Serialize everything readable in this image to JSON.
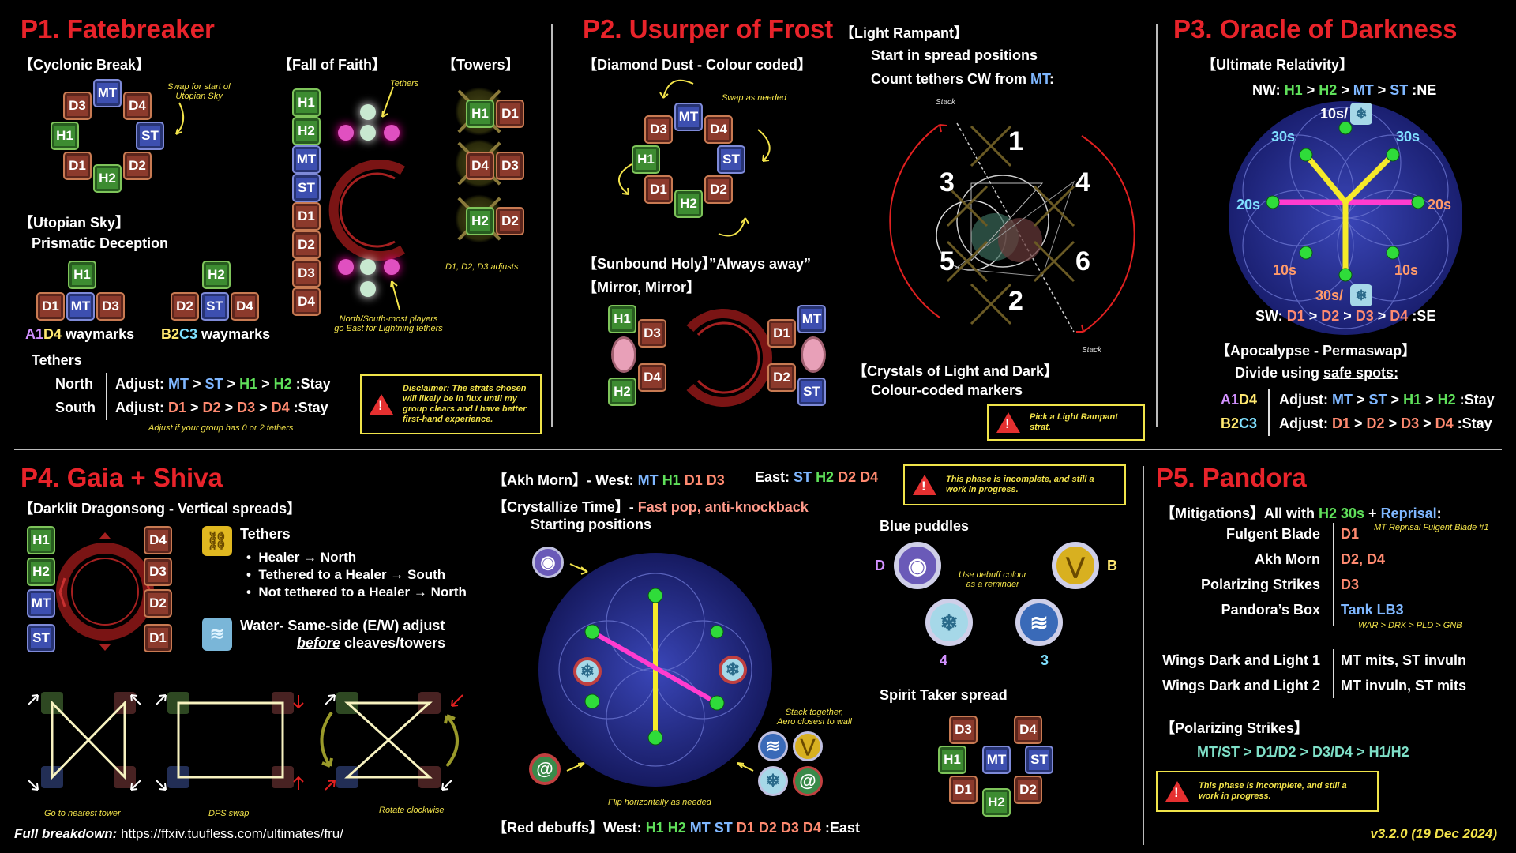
{
  "p1": {
    "title": "P1. Fatebreaker",
    "cyclonic_break": "【Cyclonic Break】",
    "cyclonic_note": "Swap for start of\nUtopian Sky",
    "fall_of_faith": "【Fall of Faith】",
    "tethers_note": "Tethers",
    "towers": "【Towers】",
    "towers_note": "D1, D2, D3 adjusts",
    "utopian_sky": "【Utopian Sky】",
    "prismatic": "Prismatic Deception",
    "a1d4_label": "waymarks",
    "b2c3_label": "waymarks",
    "fof_note": "North/South-most players\ngo East for Lightning tethers",
    "tethers_label": "Tethers",
    "north": "North",
    "south": "South",
    "adjust": "Adjust:",
    "stay": ":Stay",
    "adjust_note": "Adjust if your group has 0 or 2 tethers",
    "disclaimer": "Disclaimer: The strats chosen will likely be in flux until my group clears and I have better first-hand experience."
  },
  "p2": {
    "title": "P2. Usurper of Frost",
    "diamond_dust": "【Diamond Dust - Colour coded】",
    "swap_note": "Swap as needed",
    "light_rampant": "【Light Rampant】",
    "lr_line1": "Start in spread positions",
    "lr_line2a": "Count tethers CW from ",
    "lr_mt": "MT",
    "lr_colon": ":",
    "stack": "Stack",
    "numbers": [
      "1",
      "2",
      "3",
      "4",
      "5",
      "6"
    ],
    "sunbound": "【Sunbound Holy】”Always away”",
    "mirror": "【Mirror, Mirror】",
    "crystals": "【Crystals of Light and Dark】",
    "crystals_sub": "Colour-coded markers",
    "pick_strat": "Pick a Light Rampant strat."
  },
  "p3": {
    "title": "P3. Oracle of Darkness",
    "ultimate_rel": "【Ultimate Relativity】",
    "nw": "NW:",
    "ne": ":NE",
    "sw": "SW:",
    "se": ":SE",
    "timers": {
      "t10_top": "10s/",
      "t30_l": "30s",
      "t30_r": "30s",
      "t20_l": "20s",
      "t20_r": "20s",
      "t10_l": "10s",
      "t10_r": "10s",
      "t30_bot": "30s/"
    },
    "apocalypse": "【Apocalypse - Permaswap】",
    "divide": "Divide using ",
    "safe_spots": "safe spots:",
    "a1d4": "A1D4",
    "b2c3": "B2C3",
    "adjust": "Adjust:",
    "stay": ":Stay"
  },
  "p4": {
    "title": "P4. Gaia + Shiva",
    "darklit": "【Darklit Dragonsong - Vertical spreads】",
    "tethers": "Tethers",
    "b1": "Healer → North",
    "b2": "Tethered to a Healer → South",
    "b3": "Not tethered to a Healer → North",
    "water": "Water- Same-side (E/W) adjust",
    "before": "before",
    "cleaves": " cleaves/towers",
    "cap1": "Go to nearest tower",
    "cap2": "DPS swap",
    "cap3": "Rotate clockwise",
    "akh_morn": "【Akh Morn】- West: ",
    "akh_west": [
      "MT",
      "H1",
      "D1",
      "D3"
    ],
    "akh_east_label": "East: ",
    "akh_east": [
      "ST",
      "H2",
      "D2",
      "D4"
    ],
    "crystallize": "【Crystallize Time】- ",
    "fast_pop": "Fast pop, ",
    "anti_kb": "anti-knockback",
    "starting": "Starting positions",
    "stack_note": "Stack together,\nAero closest to wall",
    "flip_note": "Flip horizontally as needed",
    "red_debuffs": "【Red debuffs】West: ",
    "red_list": [
      "H1",
      "H2",
      "MT",
      "ST",
      "D1",
      "D2",
      "D3",
      "D4"
    ],
    "east": ":East",
    "incomplete": "This phase is incomplete, and still a work in progress.",
    "blue_puddles": "Blue puddles",
    "debuff_note": "Use debuff colour\nas a reminder",
    "marker_d": "D",
    "marker_b": "B",
    "marker_4": "4",
    "marker_3": "3",
    "spirit_taker": "Spirit Taker spread"
  },
  "p5": {
    "title": "P5. Pandora",
    "mitigations": "【Mitigations】All with ",
    "h2_30s": "H2 30s",
    "plus": " + ",
    "reprisal": "Reprisal",
    "colon": ":",
    "mt_reprisal": "MT Reprisal Fulgent Blade #1",
    "rows": [
      {
        "k": "Fulgent Blade",
        "v": "D1"
      },
      {
        "k": "Akh Morn",
        "v": "D2, D4"
      },
      {
        "k": "Polarizing Strikes",
        "v": "D3"
      },
      {
        "k": "Pandora’s Box",
        "v": "Tank LB3"
      }
    ],
    "lb_note": "WAR > DRK > PLD > GNB",
    "wings1_k": "Wings Dark and Light 1",
    "wings1_v": "MT mits, ST invuln",
    "wings2_k": "Wings Dark and Light 2",
    "wings2_v": "MT invuln, ST mits",
    "polarizing": "【Polarizing Strikes】",
    "polar_order": "MT/ST > D1/D2 > D3/D4 > H1/H2",
    "incomplete": "This phase is incomplete, and still a work in progress."
  },
  "footer": {
    "full_breakdown": "Full breakdown:",
    "url": " https://ffxiv.tuufless.com/ultimates/fru/",
    "version": "v3.2.0 (19 Dec 2024)"
  },
  "colors": {
    "red_title": "#e8232a",
    "tank": "#3d4fb0",
    "healer": "#3d8c31",
    "dps": "#8c3a2c",
    "note_yellow": "#f2e34a"
  }
}
